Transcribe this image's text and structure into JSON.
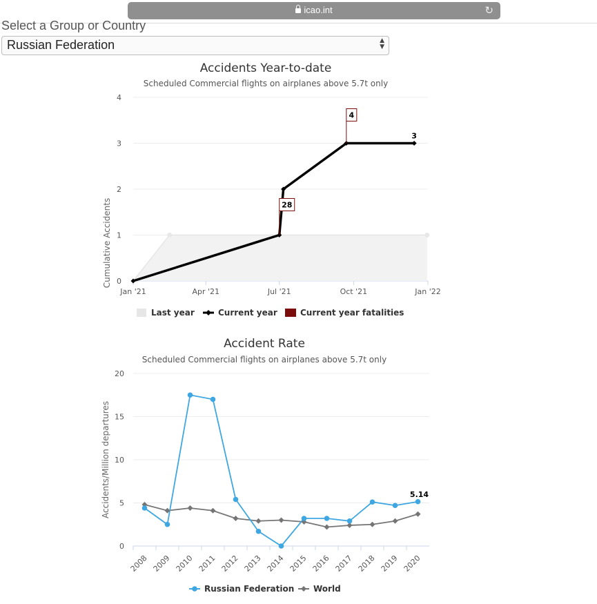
{
  "browser": {
    "url": "icao.int"
  },
  "selector": {
    "label": "Select a Group or Country",
    "value": "Russian Federation"
  },
  "chart_data": [
    {
      "type": "line",
      "title": "Accidents Year-to-date",
      "subtitle": "Scheduled Commercial flights on airplanes above 5.7t only",
      "ylabel": "Cumulative Accidents",
      "xlabel": "",
      "x_ticks": [
        "Jan '21",
        "Apr '21",
        "Jul '21",
        "Oct '21",
        "Jan '22"
      ],
      "ylim": [
        0,
        4
      ],
      "y_ticks": [
        "0",
        "1",
        "2",
        "3",
        "4"
      ],
      "legend_position": "bottom",
      "series": [
        {
          "name": "Last year",
          "type": "area",
          "color": "#e6e6e6",
          "points": [
            [
              "2021-01-01",
              0
            ],
            [
              "2021-02-15",
              1
            ],
            [
              "2021-12-31",
              1
            ]
          ]
        },
        {
          "name": "Current year",
          "type": "line",
          "color": "#000000",
          "points": [
            [
              "2021-01-01",
              0
            ],
            [
              "2021-07-01",
              1
            ],
            [
              "2021-07-06",
              2
            ],
            [
              "2021-09-22",
              3
            ],
            [
              "2021-12-15",
              3
            ]
          ]
        },
        {
          "name": "Current year fatalities",
          "type": "flag",
          "color": "#7a0c0c",
          "points": [
            [
              "2021-07-01",
              1,
              "28"
            ],
            [
              "2021-09-22",
              3,
              "4"
            ]
          ]
        }
      ],
      "end_label": "3"
    },
    {
      "type": "line",
      "title": "Accident Rate",
      "subtitle": "Scheduled Commercial flights on airplanes above 5.7t only",
      "ylabel": "Accidents/Million departures",
      "xlabel": "",
      "categories": [
        "2008",
        "2009",
        "2010",
        "2011",
        "2012",
        "2013",
        "2014",
        "2015",
        "2016",
        "2017",
        "2018",
        "2019",
        "2020"
      ],
      "ylim": [
        0,
        20
      ],
      "y_ticks": [
        "0",
        "5",
        "10",
        "15",
        "20"
      ],
      "legend_position": "bottom",
      "series": [
        {
          "name": "Russian Federation",
          "color": "#3ea6e0",
          "values": [
            4.4,
            2.5,
            17.5,
            17.0,
            5.4,
            1.7,
            0.0,
            3.2,
            3.2,
            2.9,
            5.1,
            4.7,
            5.14
          ]
        },
        {
          "name": "World",
          "color": "#757575",
          "values": [
            4.8,
            4.1,
            4.4,
            4.1,
            3.2,
            2.9,
            3.0,
            2.8,
            2.2,
            2.4,
            2.5,
            2.9,
            3.7
          ]
        }
      ],
      "end_label": "5.14"
    }
  ]
}
